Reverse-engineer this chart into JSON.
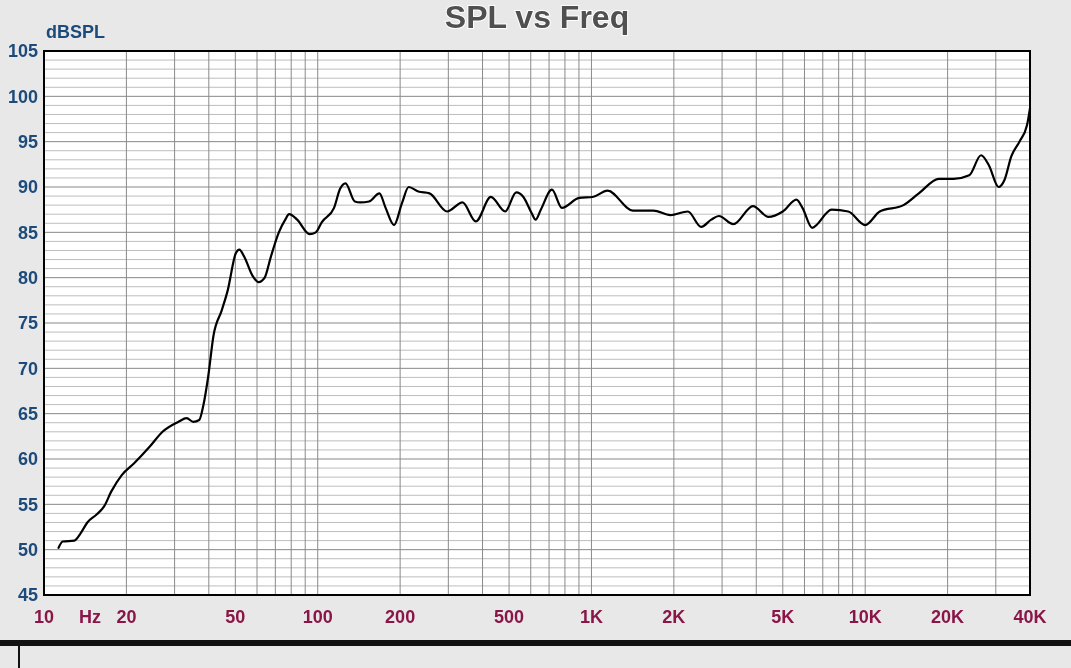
{
  "chart_data": {
    "type": "line",
    "title": "SPL vs Freq",
    "ylabel": "dBSPL",
    "xlabel": "Hz",
    "log": "x",
    "grid": true,
    "marker": "none",
    "line_style": "solid",
    "xlim": [
      10,
      40000
    ],
    "ylim": [
      45,
      105
    ],
    "xticks": [
      10,
      20,
      {
        "value": 30,
        "label": null
      },
      {
        "value": 40,
        "label": null
      },
      50,
      {
        "value": 60,
        "label": null
      },
      {
        "value": 70,
        "label": null
      },
      {
        "value": 80,
        "label": null
      },
      {
        "value": 90,
        "label": null
      },
      100,
      200,
      {
        "value": 300,
        "label": null
      },
      {
        "value": 400,
        "label": null
      },
      500,
      {
        "value": 600,
        "label": null
      },
      {
        "value": 700,
        "label": null
      },
      {
        "value": 800,
        "label": null
      },
      {
        "value": 900,
        "label": null
      },
      {
        "value": 1000,
        "label": "1K"
      },
      {
        "value": 2000,
        "label": "2K"
      },
      {
        "value": 3000,
        "label": null
      },
      {
        "value": 4000,
        "label": null
      },
      {
        "value": 5000,
        "label": "5K"
      },
      {
        "value": 6000,
        "label": null
      },
      {
        "value": 7000,
        "label": null
      },
      {
        "value": 8000,
        "label": null
      },
      {
        "value": 9000,
        "label": null
      },
      {
        "value": 10000,
        "label": "10K"
      },
      {
        "value": 20000,
        "label": "20K"
      },
      {
        "value": 30000,
        "label": null
      },
      {
        "value": 40000,
        "label": "40K"
      }
    ],
    "yticks": [
      45,
      {
        "value": 46,
        "label": null
      },
      {
        "value": 47,
        "label": null
      },
      {
        "value": 48,
        "label": null
      },
      {
        "value": 49,
        "label": null
      },
      50,
      {
        "value": 51,
        "label": null
      },
      {
        "value": 52,
        "label": null
      },
      {
        "value": 53,
        "label": null
      },
      {
        "value": 54,
        "label": null
      },
      55,
      {
        "value": 56,
        "label": null
      },
      {
        "value": 57,
        "label": null
      },
      {
        "value": 58,
        "label": null
      },
      {
        "value": 59,
        "label": null
      },
      60,
      {
        "value": 61,
        "label": null
      },
      {
        "value": 62,
        "label": null
      },
      {
        "value": 63,
        "label": null
      },
      {
        "value": 64,
        "label": null
      },
      65,
      {
        "value": 66,
        "label": null
      },
      {
        "value": 67,
        "label": null
      },
      {
        "value": 68,
        "label": null
      },
      {
        "value": 69,
        "label": null
      },
      70,
      {
        "value": 71,
        "label": null
      },
      {
        "value": 72,
        "label": null
      },
      {
        "value": 73,
        "label": null
      },
      {
        "value": 74,
        "label": null
      },
      75,
      {
        "value": 76,
        "label": null
      },
      {
        "value": 77,
        "label": null
      },
      {
        "value": 78,
        "label": null
      },
      {
        "value": 79,
        "label": null
      },
      80,
      {
        "value": 81,
        "label": null
      },
      {
        "value": 82,
        "label": null
      },
      {
        "value": 83,
        "label": null
      },
      {
        "value": 84,
        "label": null
      },
      85,
      {
        "value": 86,
        "label": null
      },
      {
        "value": 87,
        "label": null
      },
      {
        "value": 88,
        "label": null
      },
      {
        "value": 89,
        "label": null
      },
      90,
      {
        "value": 91,
        "label": null
      },
      {
        "value": 92,
        "label": null
      },
      {
        "value": 93,
        "label": null
      },
      {
        "value": 94,
        "label": null
      },
      95,
      {
        "value": 96,
        "label": null
      },
      {
        "value": 97,
        "label": null
      },
      {
        "value": 98,
        "label": null
      },
      {
        "value": 99,
        "label": null
      },
      100,
      {
        "value": 101,
        "label": null
      },
      {
        "value": 102,
        "label": null
      },
      {
        "value": 103,
        "label": null
      },
      {
        "value": 104,
        "label": null
      },
      105
    ],
    "series": [
      {
        "color": "#000000",
        "x": [
          11.3,
          11.7,
          12.9,
          13.6,
          14.4,
          15.6,
          16.6,
          17.6,
          19.2,
          21.3,
          24.4,
          27.1,
          31,
          33.2,
          35.1,
          36.9,
          38.2,
          39.8,
          41.6,
          44.6,
          46.9,
          50.2,
          51.7,
          53.9,
          57.8,
          60.8,
          64,
          67.4,
          72.1,
          76.1,
          78.6,
          84.1,
          93.4,
          98.4,
          103.4,
          114.7,
          120.7,
          126.3,
          136.6,
          143,
          154,
          168,
          177,
          190,
          203,
          215,
          233,
          256,
          297,
          338,
          378,
          429,
          484,
          531,
          564,
          605,
          625,
          653,
          717,
          780,
          902,
          1010,
          1145,
          1417,
          1683,
          1944,
          2250,
          2517,
          2740,
          2920,
          3300,
          3890,
          4430,
          5000,
          5610,
          5900,
          6400,
          7540,
          8670,
          10000,
          11300,
          13800,
          15700,
          18600,
          21000,
          24000,
          26500,
          28300,
          30700,
          32300,
          34200,
          36600,
          39000,
          40000
        ],
        "values": [
          50.2,
          50.9,
          51.0,
          51.8,
          53.0,
          53.9,
          54.8,
          56.4,
          58.2,
          59.5,
          61.4,
          63.0,
          64.1,
          64.5,
          64.1,
          64.3,
          65.9,
          69.1,
          73.6,
          76.4,
          78.6,
          82.7,
          83.1,
          82.3,
          80.2,
          79.5,
          80.0,
          82.3,
          85.0,
          86.4,
          87.0,
          86.4,
          84.8,
          85.0,
          86.1,
          87.7,
          89.8,
          90.4,
          88.4,
          88.3,
          88.4,
          89.3,
          87.7,
          85.8,
          88.2,
          90.0,
          89.5,
          89.3,
          87.3,
          88.3,
          86.2,
          88.9,
          87.3,
          89.4,
          88.9,
          87.1,
          86.4,
          87.5,
          89.7,
          87.7,
          88.8,
          88.9,
          89.6,
          87.4,
          87.4,
          86.9,
          87.3,
          85.6,
          86.4,
          86.8,
          85.9,
          87.9,
          86.7,
          87.3,
          88.6,
          87.7,
          85.5,
          87.5,
          87.3,
          85.8,
          87.3,
          88.0,
          89.3,
          90.9,
          90.9,
          91.3,
          93.5,
          92.4,
          90.0,
          90.8,
          93.4,
          95.0,
          96.8,
          98.7
        ]
      }
    ]
  }
}
